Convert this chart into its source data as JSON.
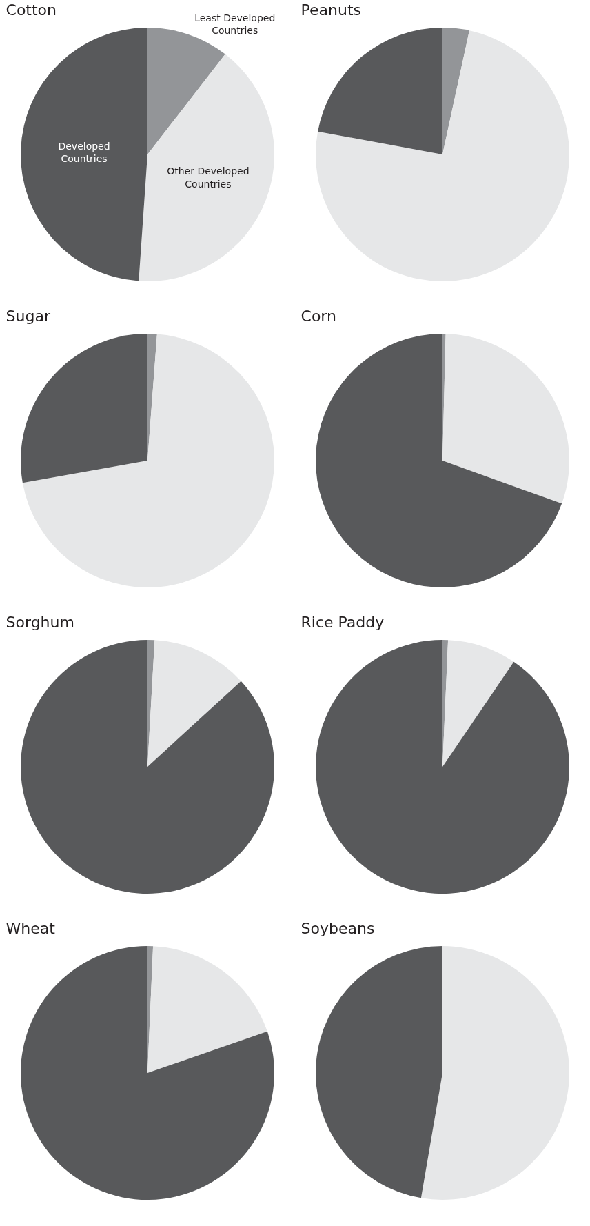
{
  "chart_data": [
    {
      "type": "pie",
      "title": "Cotton",
      "categories": [
        "Least Developed Countries",
        "Other Developed Countries",
        "Developed Countries"
      ],
      "values": [
        10.5,
        40.6,
        48.9
      ],
      "colors": [
        "#939598",
        "#e6e7e8",
        "#58595b"
      ]
    },
    {
      "type": "pie",
      "title": "Peanuts",
      "categories": [
        null,
        null,
        null
      ],
      "values": [
        3.4,
        74.5,
        22.1
      ],
      "colors": [
        "#939598",
        "#e6e7e8",
        "#58595b"
      ]
    },
    {
      "type": "pie",
      "title": "Sugar",
      "categories": [
        null,
        null,
        null
      ],
      "values": [
        1.2,
        71.0,
        27.8
      ],
      "colors": [
        "#939598",
        "#e6e7e8",
        "#58595b"
      ]
    },
    {
      "type": "pie",
      "title": "Corn",
      "categories": [
        null,
        null,
        null
      ],
      "values": [
        0.4,
        30.1,
        69.5
      ],
      "colors": [
        "#939598",
        "#e6e7e8",
        "#58595b"
      ]
    },
    {
      "type": "pie",
      "title": "Sorghum",
      "categories": [
        null,
        null,
        null
      ],
      "values": [
        0.9,
        12.3,
        86.8
      ],
      "colors": [
        "#939598",
        "#e6e7e8",
        "#58595b"
      ]
    },
    {
      "type": "pie",
      "title": "Rice Paddy",
      "categories": [
        null,
        null,
        null
      ],
      "values": [
        0.7,
        8.8,
        90.5
      ],
      "colors": [
        "#939598",
        "#e6e7e8",
        "#58595b"
      ]
    },
    {
      "type": "pie",
      "title": "Wheat",
      "categories": [
        null,
        null,
        null
      ],
      "values": [
        0.7,
        19.0,
        80.3
      ],
      "colors": [
        "#939598",
        "#e6e7e8",
        "#58595b"
      ]
    },
    {
      "type": "pie",
      "title": "Soybeans",
      "categories": [
        null,
        null,
        null
      ],
      "values": [
        0,
        52.7,
        47.3
      ],
      "colors": [
        "#939598",
        "#e6e7e8",
        "#58595b"
      ]
    }
  ]
}
